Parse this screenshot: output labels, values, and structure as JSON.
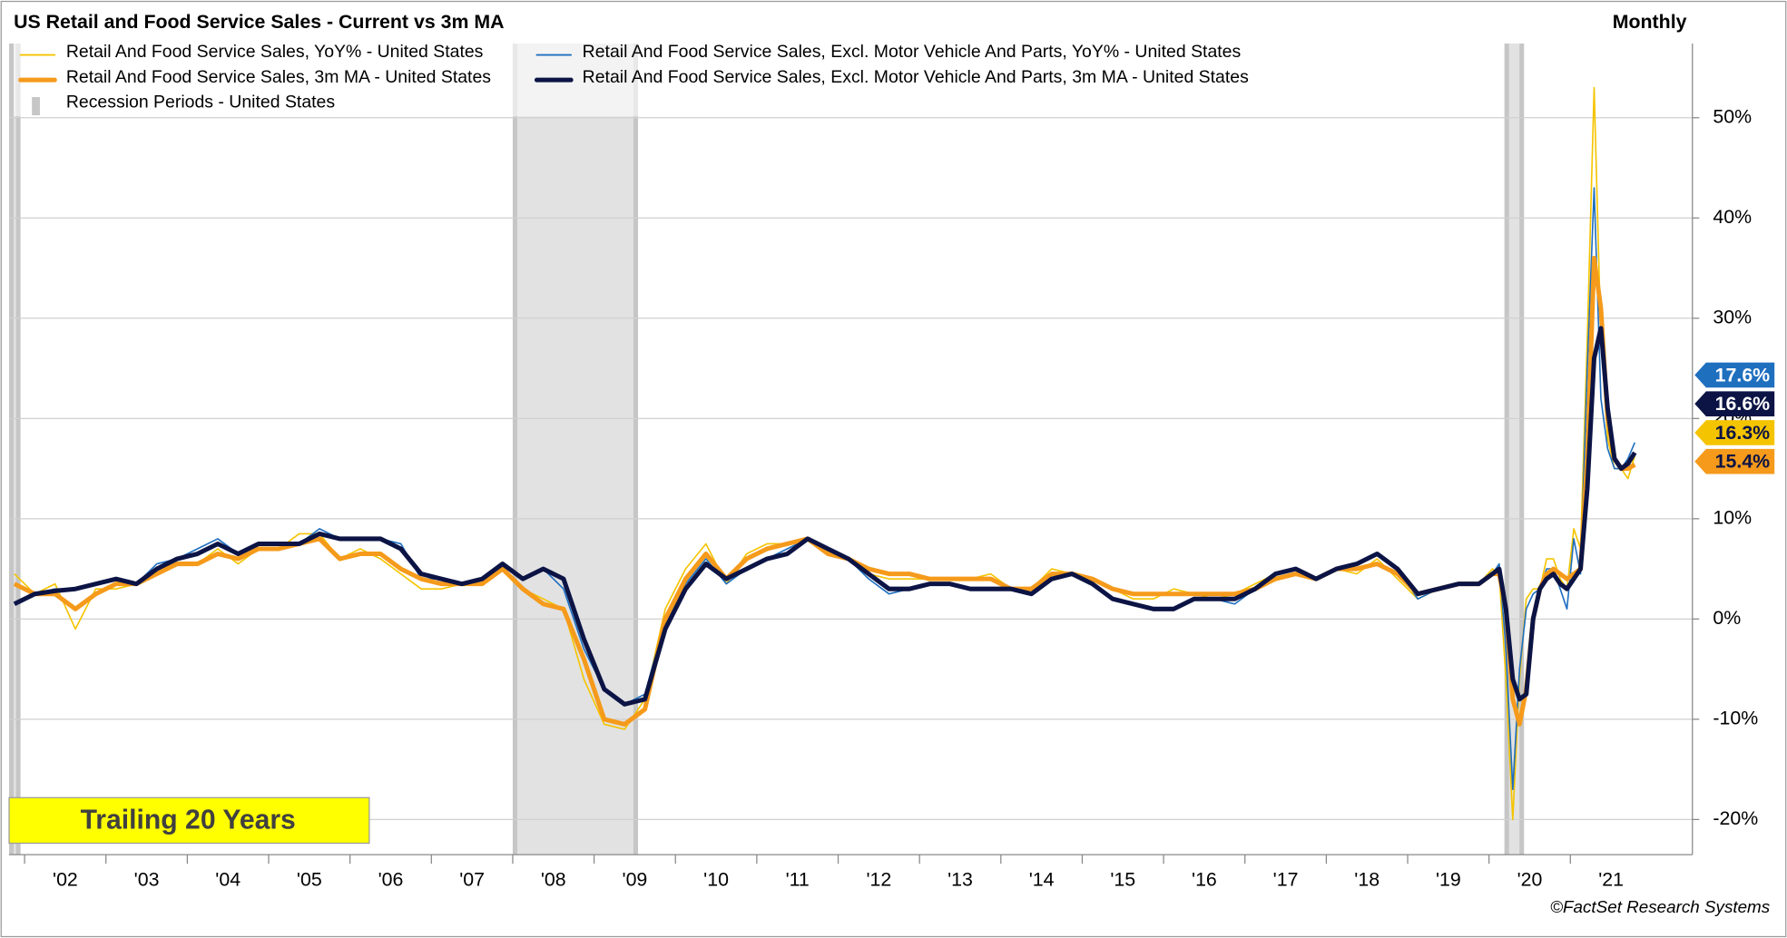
{
  "chart_data": {
    "type": "line",
    "title": "US Retail and Food Service Sales - Current vs 3m MA",
    "frequency": "Monthly",
    "annotation": "Trailing 20 Years",
    "source": "©FactSet Research Systems",
    "xlim": [
      2001.81,
      2022.5
    ],
    "ylim": [
      -23.5,
      57.4
    ],
    "yticks": [
      {
        "value": -20,
        "label": "-20%"
      },
      {
        "value": -10,
        "label": "-10%"
      },
      {
        "value": 0,
        "label": "0%"
      },
      {
        "value": 10,
        "label": "10%"
      },
      {
        "value": 20,
        "label": "20%"
      },
      {
        "value": 30,
        "label": "30%"
      },
      {
        "value": 40,
        "label": "40%"
      },
      {
        "value": 50,
        "label": "50%"
      }
    ],
    "xticks": [
      {
        "value": 2002,
        "label": "'02"
      },
      {
        "value": 2003,
        "label": "'03"
      },
      {
        "value": 2004,
        "label": "'04"
      },
      {
        "value": 2005,
        "label": "'05"
      },
      {
        "value": 2006,
        "label": "'06"
      },
      {
        "value": 2007,
        "label": "'07"
      },
      {
        "value": 2008,
        "label": "'08"
      },
      {
        "value": 2009,
        "label": "'09"
      },
      {
        "value": 2010,
        "label": "'10"
      },
      {
        "value": 2011,
        "label": "'11"
      },
      {
        "value": 2012,
        "label": "'12"
      },
      {
        "value": 2013,
        "label": "'13"
      },
      {
        "value": 2014,
        "label": "'14"
      },
      {
        "value": 2015,
        "label": "'15"
      },
      {
        "value": 2016,
        "label": "'16"
      },
      {
        "value": 2017,
        "label": "'17"
      },
      {
        "value": 2018,
        "label": "'18"
      },
      {
        "value": 2019,
        "label": "'19"
      },
      {
        "value": 2020,
        "label": "'20"
      },
      {
        "value": 2021,
        "label": "'21"
      }
    ],
    "grid": true,
    "recession_name": "Recession Periods - United States",
    "recessions": [
      {
        "start": 2001.81,
        "end": 2001.95
      },
      {
        "start": 2008.0,
        "end": 2009.54
      },
      {
        "start": 2020.19,
        "end": 2020.43
      }
    ],
    "x": [
      2001.875,
      2002.125,
      2002.375,
      2002.625,
      2002.875,
      2003.125,
      2003.375,
      2003.625,
      2003.875,
      2004.125,
      2004.375,
      2004.625,
      2004.875,
      2005.125,
      2005.375,
      2005.625,
      2005.875,
      2006.125,
      2006.375,
      2006.625,
      2006.875,
      2007.125,
      2007.375,
      2007.625,
      2007.875,
      2008.125,
      2008.375,
      2008.625,
      2008.875,
      2009.125,
      2009.375,
      2009.625,
      2009.875,
      2010.125,
      2010.375,
      2010.625,
      2010.875,
      2011.125,
      2011.375,
      2011.625,
      2011.875,
      2012.125,
      2012.375,
      2012.625,
      2012.875,
      2013.125,
      2013.375,
      2013.625,
      2013.875,
      2014.125,
      2014.375,
      2014.625,
      2014.875,
      2015.125,
      2015.375,
      2015.625,
      2015.875,
      2016.125,
      2016.375,
      2016.625,
      2016.875,
      2017.125,
      2017.375,
      2017.625,
      2017.875,
      2018.125,
      2018.375,
      2018.625,
      2018.875,
      2019.125,
      2019.375,
      2019.625,
      2019.875,
      2020.042,
      2020.125,
      2020.208,
      2020.292,
      2020.375,
      2020.458,
      2020.542,
      2020.625,
      2020.708,
      2020.792,
      2020.875,
      2020.958,
      2021.042,
      2021.125,
      2021.208,
      2021.292,
      2021.375,
      2021.458,
      2021.542,
      2021.625,
      2021.708,
      2021.792
    ],
    "series": [
      {
        "name": "Retail And Food Service Sales, YoY% - United States",
        "color": "#f5c400",
        "end_label": "16.3%",
        "end_text_color": "#0c1445",
        "values": [
          4.5,
          2.5,
          3.5,
          -1,
          3,
          3,
          3.5,
          5,
          5.5,
          5.5,
          7,
          5.5,
          7,
          7,
          8.5,
          8.5,
          6,
          7,
          6,
          4.5,
          3,
          3,
          3.5,
          3.5,
          5,
          3,
          2,
          1,
          -6,
          -10.5,
          -11,
          -8,
          1,
          5,
          7.5,
          3.5,
          6.5,
          7.5,
          7.5,
          8,
          6.5,
          6,
          4.5,
          4,
          4,
          4,
          4,
          4,
          4.5,
          3,
          3,
          5,
          4.5,
          4,
          3,
          2,
          2,
          3,
          2.5,
          2,
          2.5,
          3.5,
          4.5,
          5,
          4,
          5,
          4.5,
          6,
          4,
          2,
          3,
          3.5,
          3.5,
          5,
          4.5,
          -6,
          -20,
          -6,
          2,
          3,
          3,
          6,
          6,
          4,
          3,
          9,
          7,
          28,
          53,
          28,
          18,
          15,
          15,
          14,
          16.3
        ]
      },
      {
        "name": "Retail And Food Service Sales, Excl. Motor Vehicle And Parts, YoY% - United States",
        "color": "#1f6fbf",
        "end_label": "17.6%",
        "end_text_color": "#ffffff",
        "values": [
          1.5,
          2.5,
          3,
          3,
          3.5,
          4,
          3.5,
          5.5,
          6,
          7,
          8,
          6.5,
          7.5,
          7.5,
          7.5,
          9,
          8,
          8,
          8,
          7.5,
          4,
          4,
          3.5,
          4,
          5.5,
          4,
          5,
          3,
          -3,
          -7,
          -8.5,
          -7.5,
          0,
          3.5,
          6,
          3.5,
          5,
          6,
          7,
          8,
          7,
          6,
          4,
          2.5,
          3,
          3.5,
          3.5,
          3,
          3,
          3,
          2.5,
          4.5,
          4.5,
          3.5,
          2,
          1.5,
          1,
          1,
          2,
          2,
          1.5,
          3,
          4.5,
          5,
          4,
          5,
          5.5,
          6.5,
          5,
          2,
          3,
          3.5,
          3.5,
          4.5,
          5.5,
          -3,
          -17,
          -5,
          1,
          2.5,
          3,
          5,
          5,
          3,
          1,
          8,
          4.5,
          25,
          43,
          22,
          17,
          15,
          15,
          16,
          17.6
        ]
      },
      {
        "name": "Retail And Food Service Sales, 3m MA - United States",
        "color": "#f59a1b",
        "end_label": "15.4%",
        "end_text_color": "#0c1445",
        "values": [
          3.5,
          2.5,
          2.5,
          1,
          2.5,
          3.5,
          3.5,
          4.5,
          5.5,
          5.5,
          6.5,
          6,
          7,
          7,
          7.5,
          8,
          6,
          6.5,
          6.5,
          5,
          4,
          3.5,
          3.5,
          3.5,
          5,
          3,
          1.5,
          1,
          -4,
          -10,
          -10.5,
          -9,
          0,
          4,
          6.5,
          4,
          6,
          7,
          7.5,
          8,
          6.5,
          6,
          5,
          4.5,
          4.5,
          4,
          4,
          4,
          4,
          3,
          3,
          4.5,
          4.5,
          4,
          3,
          2.5,
          2.5,
          2.5,
          2.5,
          2.5,
          2.5,
          3,
          4,
          4.5,
          4,
          5,
          5,
          5.5,
          4.5,
          2.5,
          3,
          3.5,
          3.5,
          4.5,
          4.5,
          1,
          -8,
          -10.5,
          -7,
          0,
          3,
          4.5,
          5,
          4.5,
          4,
          4.5,
          5,
          16,
          36,
          31,
          20,
          16,
          15,
          15,
          15.4
        ]
      },
      {
        "name": "Retail And Food Service Sales, Excl. Motor Vehicle And Parts, 3m MA - United States",
        "color": "#0c1445",
        "end_label": "16.6%",
        "end_text_color": "#ffffff",
        "values": [
          1.5,
          2.5,
          2.8,
          3,
          3.5,
          4,
          3.5,
          5,
          6,
          6.5,
          7.5,
          6.5,
          7.5,
          7.5,
          7.5,
          8.5,
          8,
          8,
          8,
          7,
          4.5,
          4,
          3.5,
          4,
          5.5,
          4,
          5,
          4,
          -2,
          -7,
          -8.5,
          -8,
          -1,
          3,
          5.5,
          4,
          5,
          6,
          6.5,
          8,
          7,
          6,
          4.5,
          3,
          3,
          3.5,
          3.5,
          3,
          3,
          3,
          2.5,
          4,
          4.5,
          3.5,
          2,
          1.5,
          1,
          1,
          2,
          2,
          2,
          3,
          4.5,
          5,
          4,
          5,
          5.5,
          6.5,
          5,
          2.5,
          3,
          3.5,
          3.5,
          4.5,
          5,
          1,
          -6,
          -8,
          -7.5,
          0,
          3,
          4,
          4.5,
          3.5,
          3,
          4,
          5,
          13,
          26,
          29,
          21,
          16,
          15,
          15.5,
          16.6
        ]
      }
    ]
  }
}
